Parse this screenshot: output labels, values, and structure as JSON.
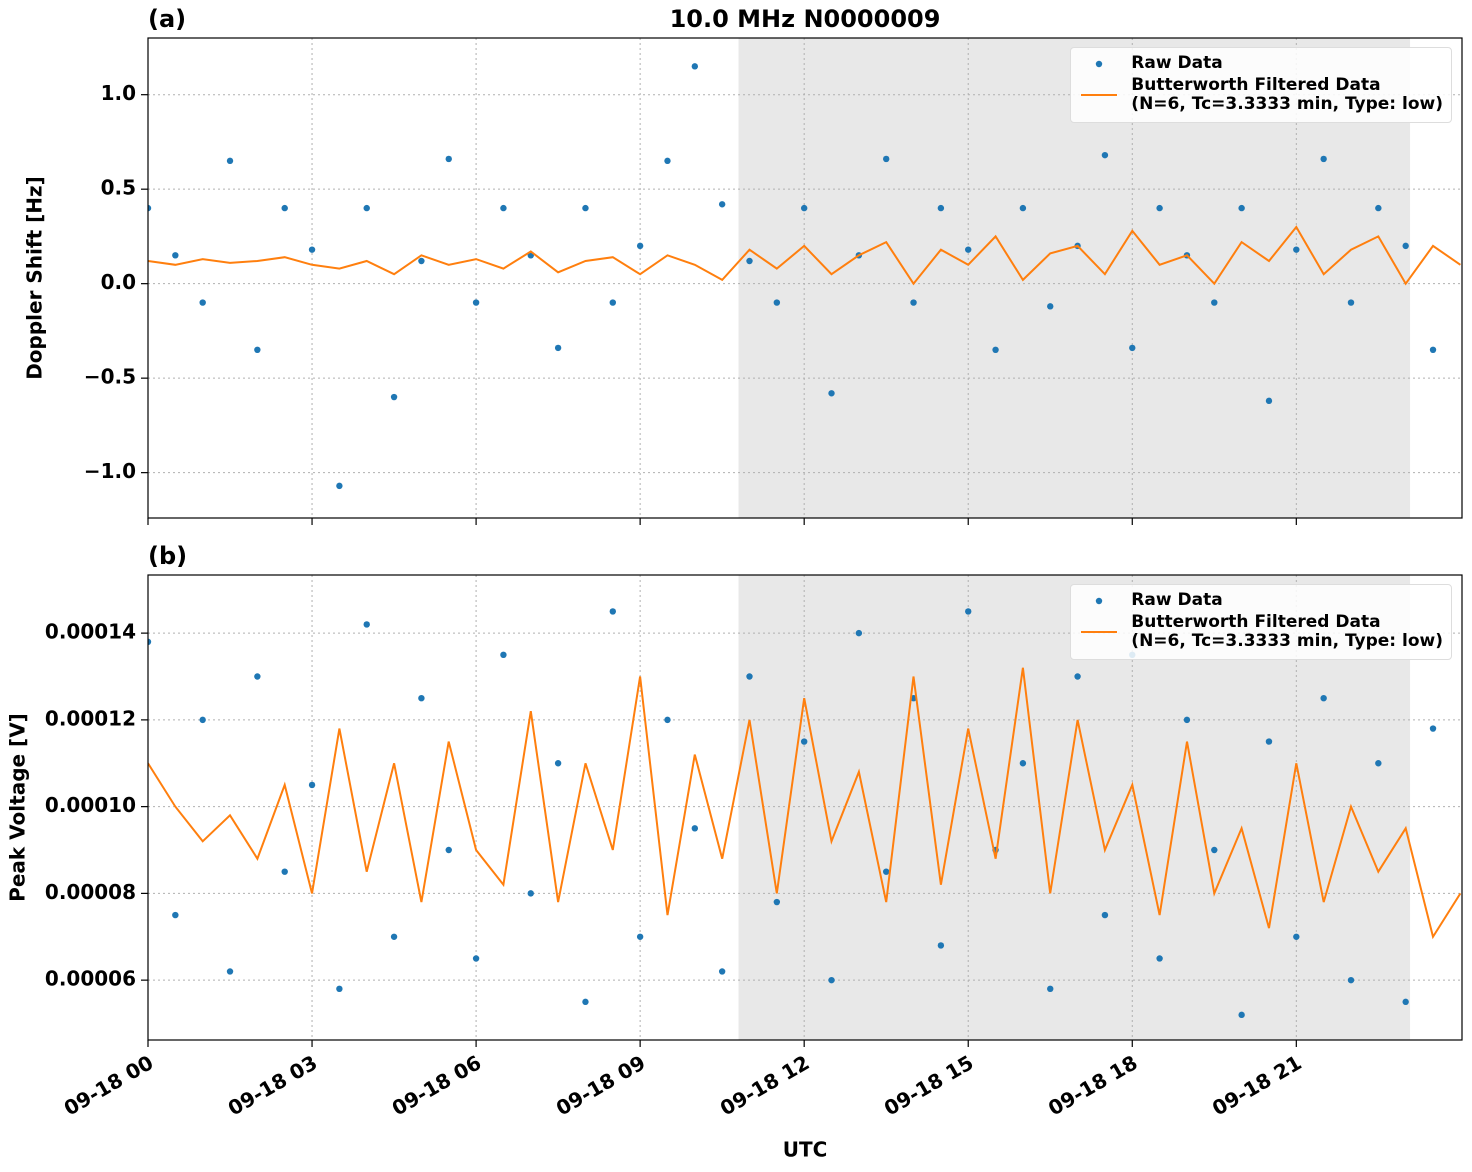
{
  "chart_data": [
    {
      "type": "scatter",
      "panel_label": "(a)",
      "title": "10.0 MHz N0000009",
      "ylabel": "Doppler Shift [Hz]",
      "xlim": [
        0,
        24.03
      ],
      "ylim": [
        -1.24,
        1.3
      ],
      "grid": true,
      "legend": "upper right",
      "shaded_span": [
        10.8,
        23.08
      ],
      "shade_color": "#e8e8e8",
      "xticks": [
        0,
        3,
        6,
        9,
        12,
        15,
        18,
        21
      ],
      "yticks": [
        {
          "value": -1.0,
          "label": "−1.0"
        },
        {
          "value": -0.5,
          "label": "−0.5"
        },
        {
          "value": 0.0,
          "label": "0.0"
        },
        {
          "value": 0.5,
          "label": "0.5"
        },
        {
          "value": 1.0,
          "label": "1.0"
        }
      ],
      "series": [
        {
          "name": "Raw Data",
          "type": "scatter",
          "color": "#1f77b4",
          "x": [
            0,
            0.5,
            1,
            1.5,
            2,
            2.5,
            3,
            3.5,
            4,
            4.5,
            5,
            5.5,
            6,
            6.5,
            7,
            7.5,
            8,
            8.5,
            9,
            9.5,
            10,
            10.5,
            11,
            11.5,
            12,
            12.5,
            13,
            13.5,
            14,
            14.5,
            15,
            15.5,
            16,
            16.5,
            17,
            17.5,
            18,
            18.5,
            19,
            19.5,
            20,
            20.5,
            21,
            21.5,
            22,
            22.5,
            23,
            23.5
          ],
          "values": [
            0.4,
            0.15,
            -0.1,
            0.65,
            -0.35,
            0.4,
            0.18,
            -1.07,
            0.4,
            -0.6,
            0.12,
            0.66,
            -0.1,
            0.4,
            0.15,
            -0.34,
            0.4,
            -0.1,
            0.2,
            0.65,
            1.15,
            0.42,
            0.12,
            -0.1,
            0.4,
            -0.58,
            0.15,
            0.66,
            -0.1,
            0.4,
            0.18,
            -0.35,
            0.4,
            -0.12,
            0.2,
            0.68,
            -0.34,
            0.4,
            0.15,
            -0.1,
            0.4,
            -0.62,
            0.18,
            0.66,
            -0.1,
            0.4,
            0.2,
            -0.35
          ]
        },
        {
          "name": "Butterworth Filtered Data\n(N=6, Tc=3.3333 min, Type: low)",
          "type": "line",
          "color": "#ff7f0e",
          "x": [
            0,
            0.5,
            1,
            1.5,
            2,
            2.5,
            3,
            3.5,
            4,
            4.5,
            5,
            5.5,
            6,
            6.5,
            7,
            7.5,
            8,
            8.5,
            9,
            9.5,
            10,
            10.5,
            11,
            11.5,
            12,
            12.5,
            13,
            13.5,
            14,
            14.5,
            15,
            15.5,
            16,
            16.5,
            17,
            17.5,
            18,
            18.5,
            19,
            19.5,
            20,
            20.5,
            21,
            21.5,
            22,
            22.5,
            23,
            23.5,
            24
          ],
          "values": [
            0.12,
            0.1,
            0.13,
            0.11,
            0.12,
            0.14,
            0.1,
            0.08,
            0.12,
            0.05,
            0.15,
            0.1,
            0.13,
            0.08,
            0.17,
            0.06,
            0.12,
            0.14,
            0.05,
            0.15,
            0.1,
            0.02,
            0.18,
            0.08,
            0.2,
            0.05,
            0.15,
            0.22,
            0.0,
            0.18,
            0.1,
            0.25,
            0.02,
            0.16,
            0.2,
            0.05,
            0.28,
            0.1,
            0.15,
            0.0,
            0.22,
            0.12,
            0.3,
            0.05,
            0.18,
            0.25,
            0.0,
            0.2,
            0.1
          ]
        }
      ]
    },
    {
      "type": "scatter",
      "panel_label": "(b)",
      "ylabel": "Peak Voltage [V]",
      "xlabel": "UTC",
      "xlim": [
        0,
        24.03
      ],
      "ylim": [
        4.62e-05,
        0.0001534
      ],
      "grid": true,
      "legend": "upper right",
      "shaded_span": [
        10.8,
        23.08
      ],
      "shade_color": "#e8e8e8",
      "xticks": [
        {
          "value": 0,
          "label": "09-18 00"
        },
        {
          "value": 3,
          "label": "09-18 03"
        },
        {
          "value": 6,
          "label": "09-18 06"
        },
        {
          "value": 9,
          "label": "09-18 09"
        },
        {
          "value": 12,
          "label": "09-18 12"
        },
        {
          "value": 15,
          "label": "09-18 15"
        },
        {
          "value": 18,
          "label": "09-18 18"
        },
        {
          "value": 21,
          "label": "09-18 21"
        }
      ],
      "yticks": [
        6e-05,
        8e-05,
        {
          "value": 0.0001,
          "label": "0.00010"
        },
        0.00012,
        0.00014
      ],
      "series": [
        {
          "name": "Raw Data",
          "type": "scatter",
          "color": "#1f77b4",
          "x": [
            0,
            0.5,
            1,
            1.5,
            2,
            2.5,
            3,
            3.5,
            4,
            4.5,
            5,
            5.5,
            6,
            6.5,
            7,
            7.5,
            8,
            8.5,
            9,
            9.5,
            10,
            10.5,
            11,
            11.5,
            12,
            12.5,
            13,
            13.5,
            14,
            14.5,
            15,
            15.5,
            16,
            16.5,
            17,
            17.5,
            18,
            18.5,
            19,
            19.5,
            20,
            20.5,
            21,
            21.5,
            22,
            22.5,
            23,
            23.5
          ],
          "values": [
            0.000138,
            7.5e-05,
            0.00012,
            6.2e-05,
            0.00013,
            8.5e-05,
            0.000105,
            5.8e-05,
            0.000142,
            7e-05,
            0.000125,
            9e-05,
            6.5e-05,
            0.000135,
            8e-05,
            0.00011,
            5.5e-05,
            0.000145,
            7e-05,
            0.00012,
            9.5e-05,
            6.2e-05,
            0.00013,
            7.8e-05,
            0.000115,
            6e-05,
            0.00014,
            8.5e-05,
            0.000125,
            6.8e-05,
            0.000145,
            9e-05,
            0.00011,
            5.8e-05,
            0.00013,
            7.5e-05,
            0.000135,
            6.5e-05,
            0.00012,
            9e-05,
            5.2e-05,
            0.000115,
            7e-05,
            0.000125,
            6e-05,
            0.00011,
            5.5e-05,
            0.000118
          ]
        },
        {
          "name": "Butterworth Filtered Data\n(N=6, Tc=3.3333 min, Type: low)",
          "type": "line",
          "color": "#ff7f0e",
          "x": [
            0,
            0.5,
            1,
            1.5,
            2,
            2.5,
            3,
            3.5,
            4,
            4.5,
            5,
            5.5,
            6,
            6.5,
            7,
            7.5,
            8,
            8.5,
            9,
            9.5,
            10,
            10.5,
            11,
            11.5,
            12,
            12.5,
            13,
            13.5,
            14,
            14.5,
            15,
            15.5,
            16,
            16.5,
            17,
            17.5,
            18,
            18.5,
            19,
            19.5,
            20,
            20.5,
            21,
            21.5,
            22,
            22.5,
            23,
            23.5,
            24
          ],
          "values": [
            0.00011,
            0.0001,
            9.2e-05,
            9.8e-05,
            8.8e-05,
            0.000105,
            8e-05,
            0.000118,
            8.5e-05,
            0.00011,
            7.8e-05,
            0.000115,
            9e-05,
            8.2e-05,
            0.000122,
            7.8e-05,
            0.00011,
            9e-05,
            0.00013,
            7.5e-05,
            0.000112,
            8.8e-05,
            0.00012,
            8e-05,
            0.000125,
            9.2e-05,
            0.000108,
            7.8e-05,
            0.00013,
            8.2e-05,
            0.000118,
            8.8e-05,
            0.000132,
            8e-05,
            0.00012,
            9e-05,
            0.000105,
            7.5e-05,
            0.000115,
            8e-05,
            9.5e-05,
            7.2e-05,
            0.00011,
            7.8e-05,
            0.0001,
            8.5e-05,
            9.5e-05,
            7e-05,
            8e-05
          ]
        }
      ]
    }
  ]
}
